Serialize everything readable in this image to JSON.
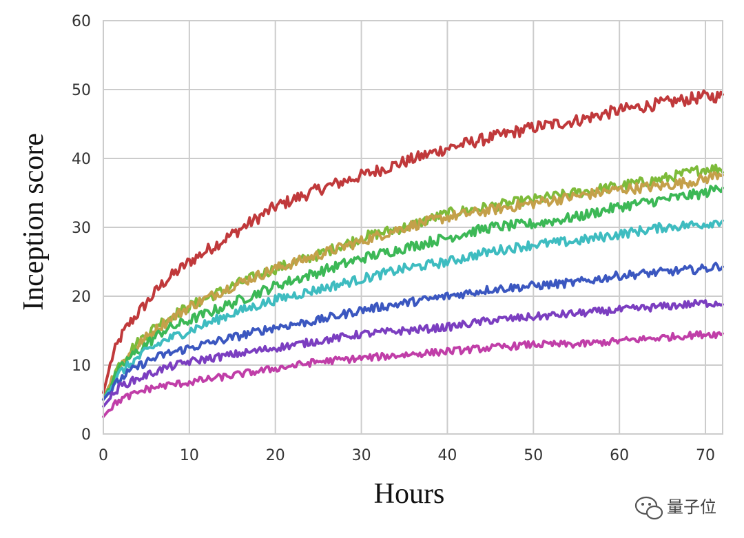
{
  "chart_data": {
    "type": "line",
    "title": "",
    "xlabel": "Hours",
    "ylabel": "Inception score",
    "xlim": [
      0,
      72
    ],
    "ylim": [
      0,
      60
    ],
    "xticks": [
      0,
      10,
      20,
      30,
      40,
      50,
      60,
      70
    ],
    "yticks": [
      0,
      10,
      20,
      30,
      40,
      50,
      60
    ],
    "grid": true,
    "x": [
      0,
      1,
      2,
      3,
      5,
      7,
      10,
      15,
      20,
      25,
      30,
      35,
      40,
      45,
      50,
      55,
      60,
      65,
      70,
      72
    ],
    "series": [
      {
        "color": "#c0393b",
        "values": [
          6,
          11,
          14,
          16,
          19,
          22,
          25,
          29,
          33,
          35.5,
          37.5,
          39.5,
          41.5,
          43,
          44.5,
          45.5,
          47,
          48,
          49,
          49
        ]
      },
      {
        "color": "#7dbb3a",
        "values": [
          5,
          8,
          10.5,
          12,
          14.5,
          16.5,
          18.5,
          21.5,
          24,
          26,
          28.5,
          30,
          32,
          33,
          34,
          35,
          36,
          37,
          38.5,
          38.5
        ]
      },
      {
        "color": "#c4a04a",
        "values": [
          5,
          8,
          10,
          11.5,
          14,
          16,
          18.5,
          21.5,
          24,
          26,
          28,
          30,
          31.5,
          32.5,
          33.5,
          34.5,
          35.5,
          36,
          37,
          38
        ]
      },
      {
        "color": "#3cb856",
        "values": [
          5,
          7.5,
          9.5,
          11,
          13,
          15,
          16.5,
          19,
          21.5,
          23.5,
          25.5,
          27,
          28.5,
          30,
          30.5,
          31.5,
          33,
          34,
          35,
          36
        ]
      },
      {
        "color": "#3ebcc0",
        "values": [
          5,
          7,
          9,
          10,
          12,
          13.5,
          15,
          17.5,
          19.5,
          21,
          22.5,
          24,
          25,
          26.5,
          27.5,
          28,
          29,
          30,
          30.5,
          31
        ]
      },
      {
        "color": "#3b57c0",
        "values": [
          5,
          6.5,
          8,
          9,
          10.5,
          11.5,
          12.5,
          14,
          15.5,
          16.5,
          18,
          19,
          20,
          21,
          21.5,
          22,
          23,
          23.5,
          24,
          24.5
        ]
      },
      {
        "color": "#7b3ec0",
        "values": [
          4,
          5.5,
          7,
          7.5,
          8.5,
          9.5,
          10.5,
          11.5,
          12.5,
          13.5,
          14.5,
          15,
          15.5,
          16.5,
          17,
          17.5,
          18,
          18.5,
          19,
          19
        ]
      },
      {
        "color": "#c03ea8",
        "values": [
          2.5,
          4,
          5,
          5.5,
          6.5,
          7,
          7.5,
          8.5,
          9.5,
          10.5,
          11,
          11.5,
          12,
          12.5,
          13,
          13,
          13.5,
          14,
          14.5,
          14.5
        ]
      }
    ]
  },
  "watermark": {
    "text": "量子位",
    "icon": "wechat-icon"
  }
}
